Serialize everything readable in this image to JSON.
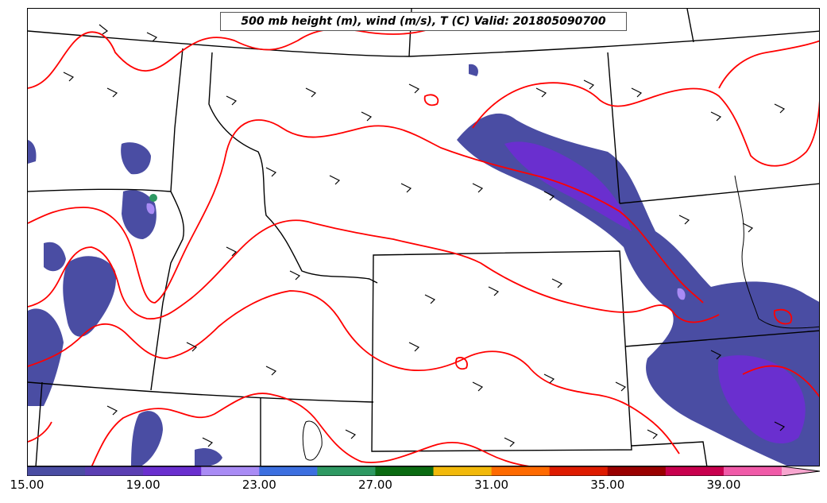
{
  "title": "500 mb height (m), wind (m/s), T (C) Valid: 201805090700",
  "colorbar": {
    "colors": [
      "#4a4da3",
      "#5b3fb3",
      "#6a2fcf",
      "#a98bf5",
      "#3c6fe0",
      "#2e9962",
      "#0b6b12",
      "#f2b90a",
      "#ff6a00",
      "#de1b00",
      "#990000",
      "#c8004e",
      "#f05aa8",
      "#f7a6cf"
    ],
    "tick_labels": [
      "15.00",
      "19.00",
      "23.00",
      "27.00",
      "31.00",
      "35.00",
      "39.00"
    ]
  },
  "map_layers": {
    "filled_field": "wind speed shading (purple, >15)",
    "contours": "red height contours",
    "barbs": "black wind barbs",
    "boundaries": "black state/county borders"
  },
  "colors": {
    "contour": "#ff0000",
    "boundary": "#000000",
    "shade_main": "#4a4da3",
    "shade_strong": "#6a2fcf"
  }
}
